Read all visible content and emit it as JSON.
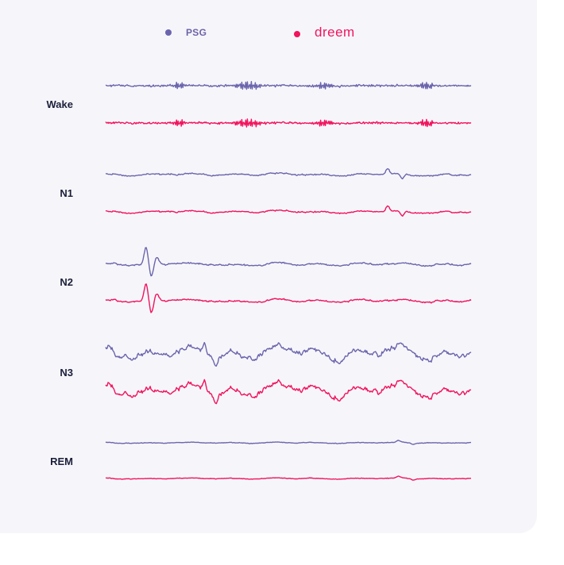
{
  "colors": {
    "psg": "#6b64ad",
    "dreem": "#f2135d",
    "label": "#1c1f3a",
    "card": "#f6f6fa"
  },
  "legend": [
    {
      "key": "psg",
      "label": "PSG",
      "color": "#6b64ad"
    },
    {
      "key": "dreem",
      "label": "dreem",
      "color": "#f2135d"
    }
  ],
  "chart_data": {
    "type": "line",
    "title": "",
    "xlabel": "",
    "ylabel": "",
    "grid": false,
    "legend_placement": "top-center",
    "stages": [
      "Wake",
      "N1",
      "N2",
      "N3",
      "REM"
    ],
    "series": [
      {
        "name": "PSG",
        "key": "psg"
      },
      {
        "name": "dreem",
        "key": "dreem"
      }
    ]
  }
}
